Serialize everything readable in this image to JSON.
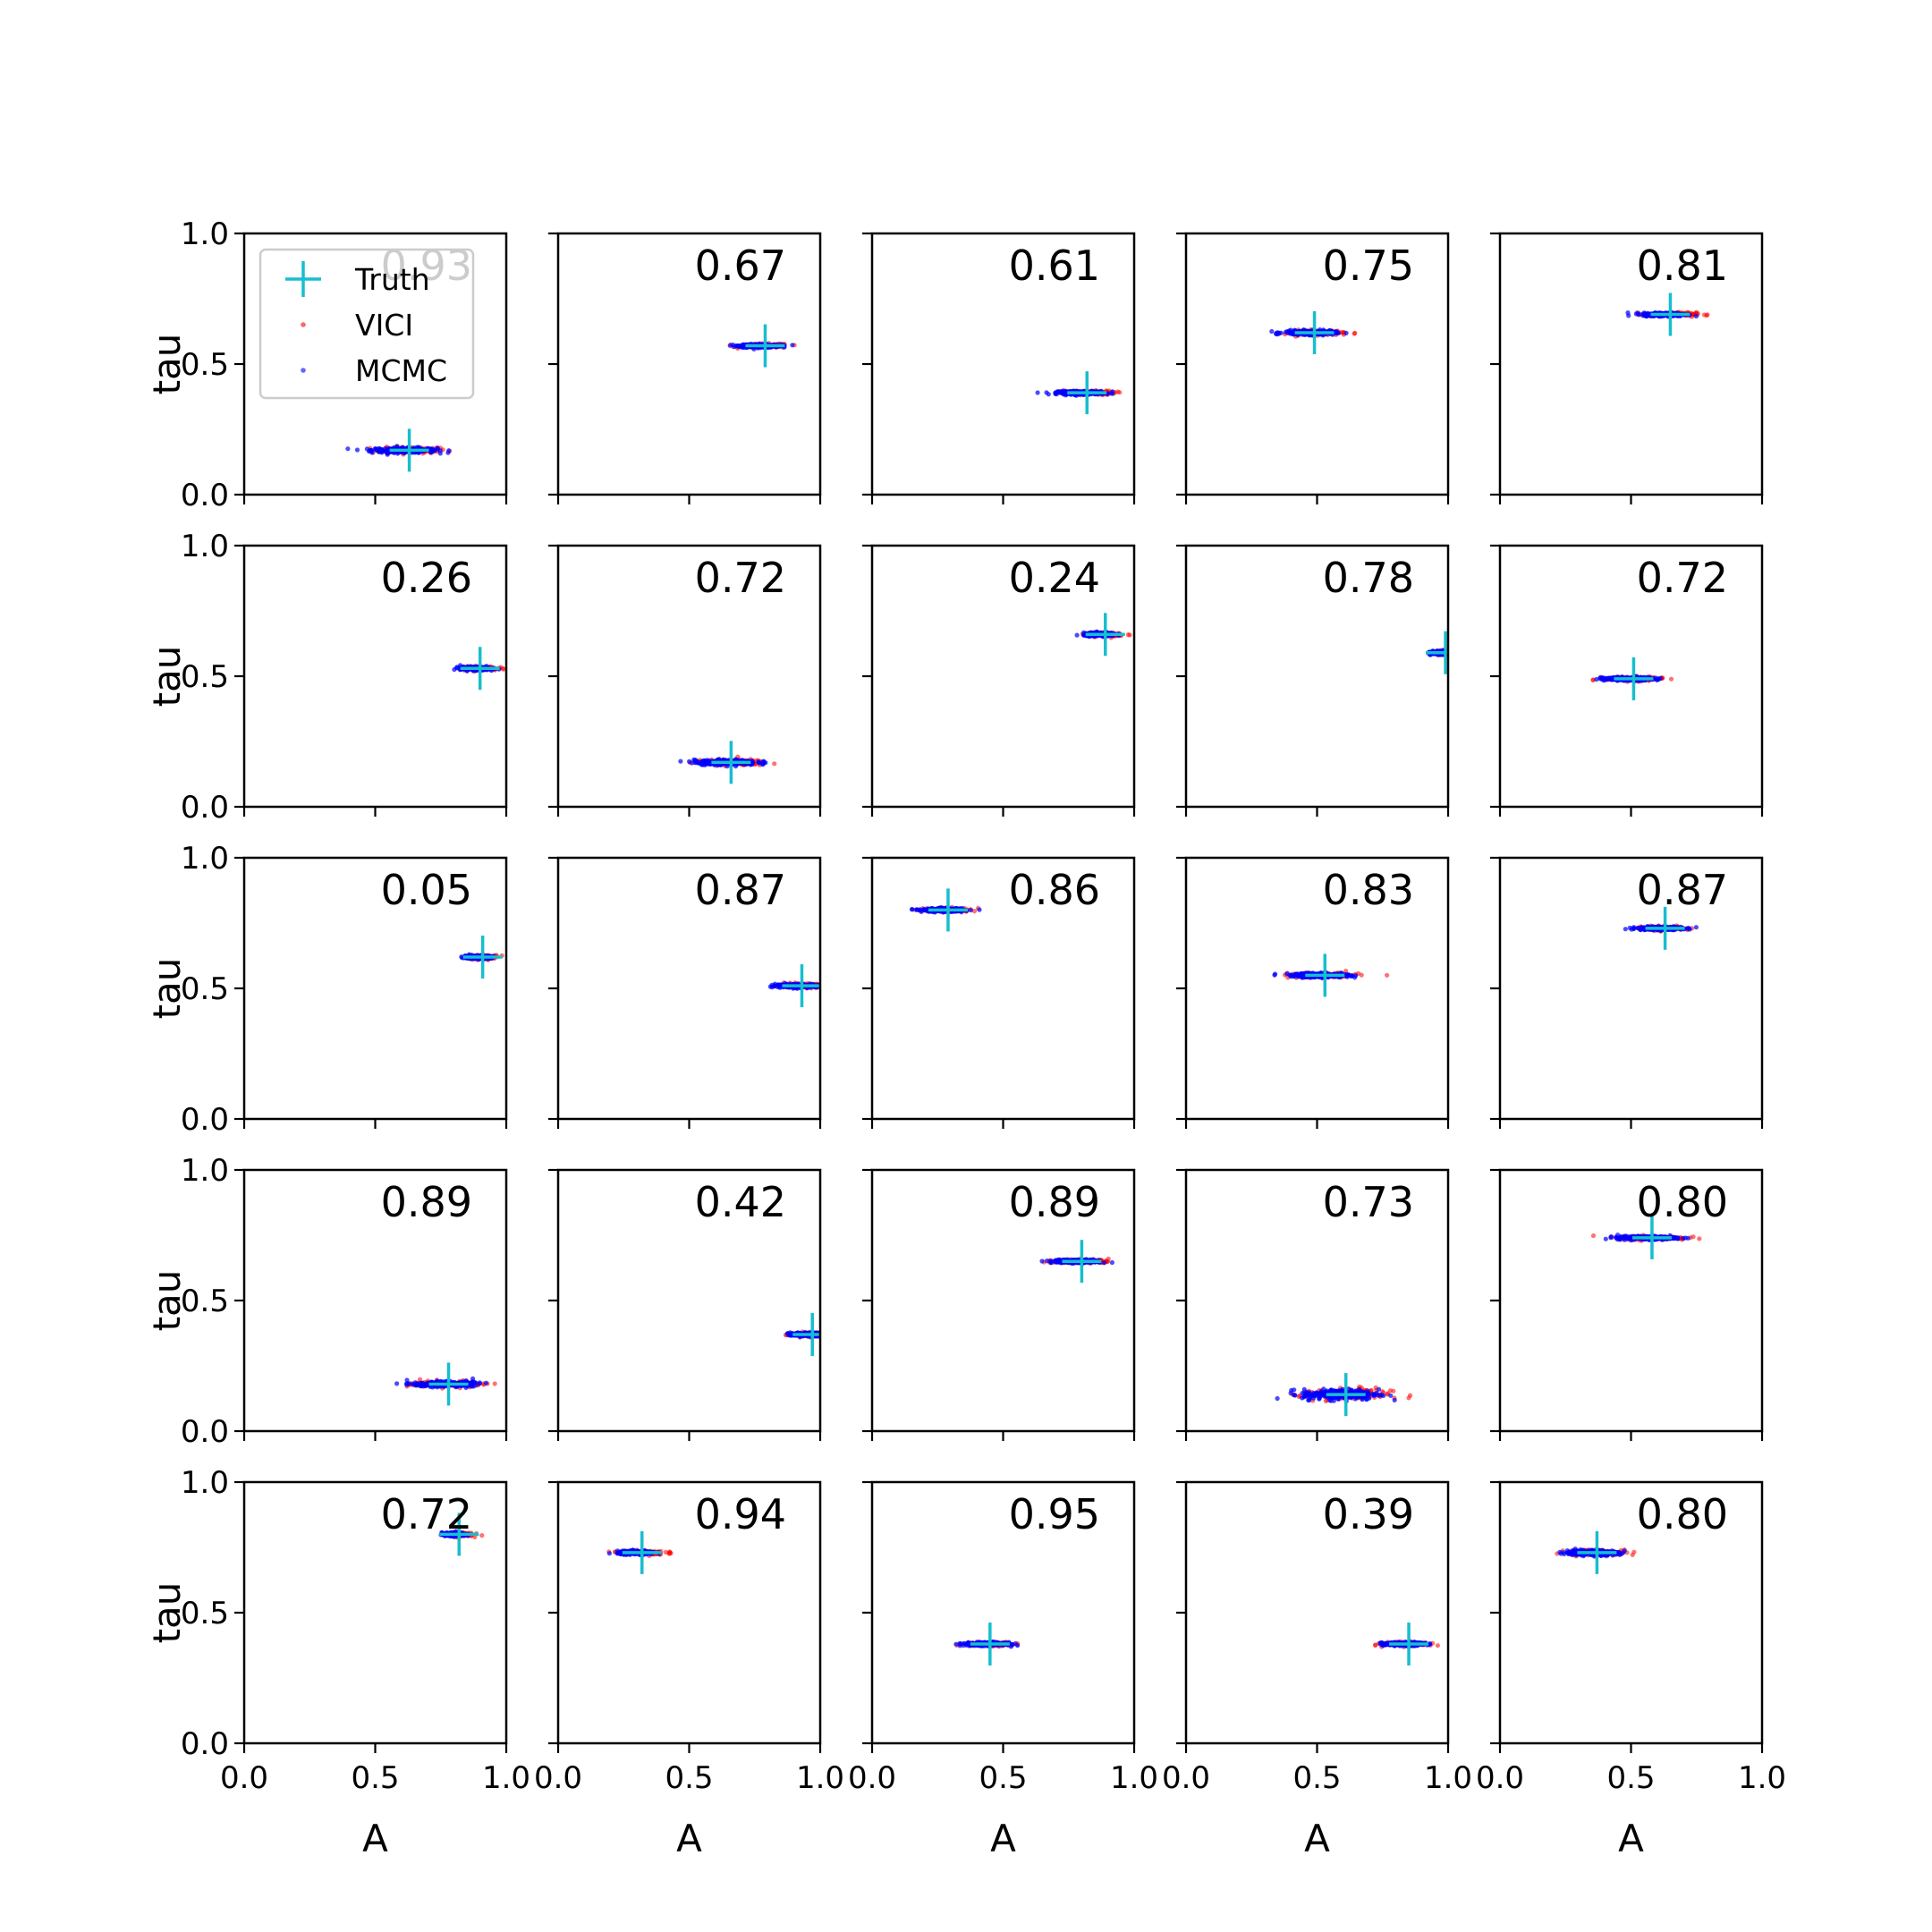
{
  "chart_data": {
    "type": "scatter",
    "grid": false,
    "rows": 5,
    "cols": 5,
    "xlabel": "A",
    "ylabel": "tau",
    "xlim": [
      0,
      1
    ],
    "ylim": [
      0,
      1
    ],
    "xtick_labels": [
      "0.0",
      "0.5",
      "1.0"
    ],
    "ytick_labels": [
      "0.0",
      "0.5",
      "1.0"
    ],
    "legend": {
      "placement": "top-left of first panel",
      "entries": [
        {
          "name": "Truth",
          "marker": "plus",
          "color": "#17becf"
        },
        {
          "name": "VICI",
          "marker": "dot",
          "color": "#ff0000"
        },
        {
          "name": "MCMC",
          "marker": "dot",
          "color": "#0000ff"
        }
      ]
    },
    "series_colors": {
      "truth": "#17becf",
      "vici": "#ff0000",
      "mcmc": "#0000ff"
    },
    "panels": [
      {
        "label": "0.93",
        "truth": [
          0.63,
          0.17
        ],
        "spread": [
          0.22,
          0.012
        ]
      },
      {
        "label": "0.67",
        "truth": [
          0.79,
          0.57
        ],
        "spread": [
          0.14,
          0.008
        ]
      },
      {
        "label": "0.61",
        "truth": [
          0.82,
          0.39
        ],
        "spread": [
          0.16,
          0.008
        ]
      },
      {
        "label": "0.75",
        "truth": [
          0.49,
          0.62
        ],
        "spread": [
          0.17,
          0.01
        ]
      },
      {
        "label": "0.81",
        "truth": [
          0.65,
          0.69
        ],
        "spread": [
          0.15,
          0.008
        ]
      },
      {
        "label": "0.26",
        "truth": [
          0.9,
          0.53
        ],
        "spread": [
          0.1,
          0.008
        ]
      },
      {
        "label": "0.72",
        "truth": [
          0.66,
          0.17
        ],
        "spread": [
          0.21,
          0.012
        ]
      },
      {
        "label": "0.24",
        "truth": [
          0.89,
          0.66
        ],
        "spread": [
          0.11,
          0.008
        ]
      },
      {
        "label": "0.78",
        "truth": [
          0.99,
          0.59
        ],
        "spread": [
          0.06,
          0.008
        ]
      },
      {
        "label": "0.72",
        "truth": [
          0.51,
          0.49
        ],
        "spread": [
          0.17,
          0.008
        ]
      },
      {
        "label": "0.05",
        "truth": [
          0.91,
          0.62
        ],
        "spread": [
          0.09,
          0.008
        ]
      },
      {
        "label": "0.87",
        "truth": [
          0.93,
          0.51
        ],
        "spread": [
          0.14,
          0.008
        ]
      },
      {
        "label": "0.86",
        "truth": [
          0.29,
          0.8
        ],
        "spread": [
          0.14,
          0.008
        ]
      },
      {
        "label": "0.83",
        "truth": [
          0.53,
          0.55
        ],
        "spread": [
          0.2,
          0.01
        ]
      },
      {
        "label": "0.87",
        "truth": [
          0.63,
          0.73
        ],
        "spread": [
          0.15,
          0.008
        ]
      },
      {
        "label": "0.89",
        "truth": [
          0.78,
          0.18
        ],
        "spread": [
          0.21,
          0.012
        ]
      },
      {
        "label": "0.42",
        "truth": [
          0.97,
          0.37
        ],
        "spread": [
          0.11,
          0.008
        ]
      },
      {
        "label": "0.89",
        "truth": [
          0.8,
          0.65
        ],
        "spread": [
          0.16,
          0.008
        ]
      },
      {
        "label": "0.73",
        "truth": [
          0.61,
          0.14
        ],
        "spread": [
          0.26,
          0.025
        ]
      },
      {
        "label": "0.80",
        "truth": [
          0.58,
          0.74
        ],
        "spread": [
          0.2,
          0.008
        ]
      },
      {
        "label": "0.72",
        "truth": [
          0.82,
          0.8
        ],
        "spread": [
          0.08,
          0.008
        ]
      },
      {
        "label": "0.94",
        "truth": [
          0.32,
          0.73
        ],
        "spread": [
          0.13,
          0.008
        ]
      },
      {
        "label": "0.95",
        "truth": [
          0.45,
          0.38
        ],
        "spread": [
          0.14,
          0.008
        ]
      },
      {
        "label": "0.39",
        "truth": [
          0.85,
          0.38
        ],
        "spread": [
          0.14,
          0.008
        ]
      },
      {
        "label": "0.80",
        "truth": [
          0.37,
          0.73
        ],
        "spread": [
          0.18,
          0.012
        ]
      }
    ]
  }
}
